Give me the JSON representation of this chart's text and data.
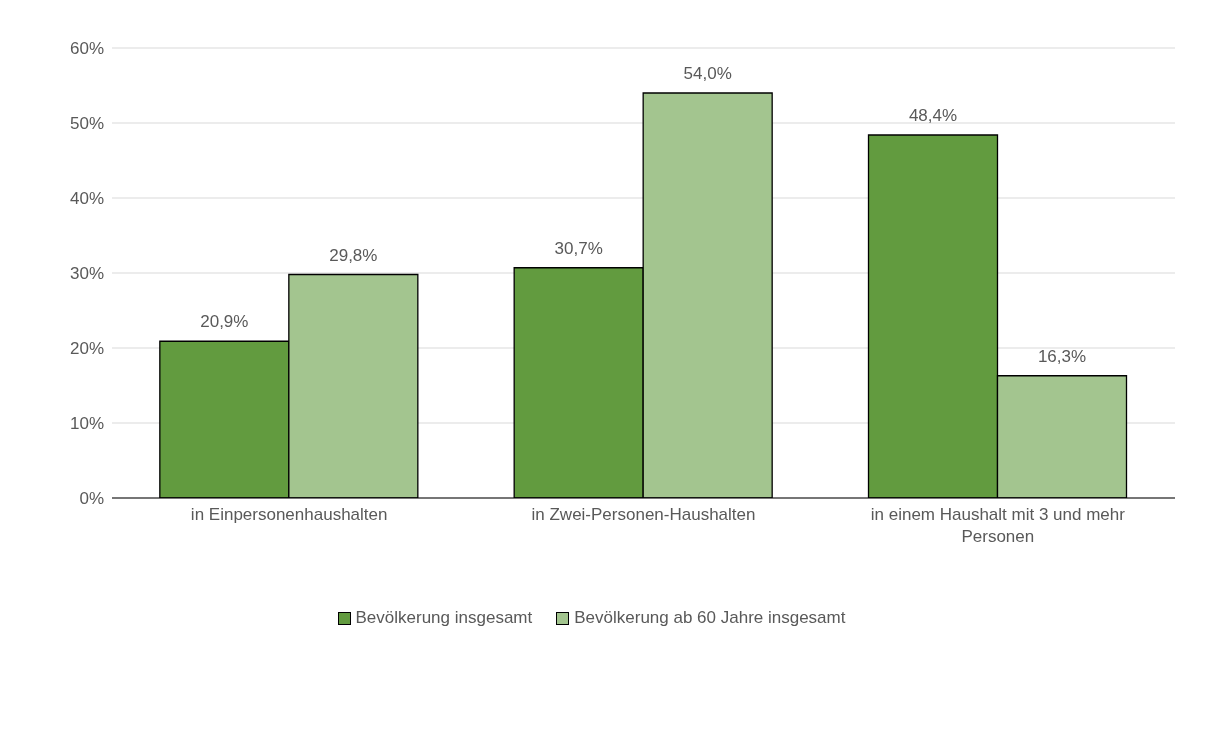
{
  "chart_data": {
    "type": "bar",
    "categories": [
      "in Einpersonenhaushalten",
      "in Zwei-Personen-Haushalten",
      "in einem Haushalt mit 3 und mehr Personen"
    ],
    "series": [
      {
        "name": "Bevölkerung insgesamt",
        "color": "#629b3f",
        "values": [
          20.9,
          30.7,
          48.4
        ],
        "value_labels": [
          "20,9%",
          "30,7%",
          "48,4%"
        ]
      },
      {
        "name": "Bevölkerung ab 60 Jahre insgesamt",
        "color": "#a3c58f",
        "values": [
          29.8,
          54.0,
          16.3
        ],
        "value_labels": [
          "29,8%",
          "54,0%",
          "16,3%"
        ]
      }
    ],
    "ylim": [
      0,
      60
    ],
    "yticks": [
      {
        "value": 0,
        "label": "0%"
      },
      {
        "value": 10,
        "label": "10%"
      },
      {
        "value": 20,
        "label": "20%"
      },
      {
        "value": 30,
        "label": "30%"
      },
      {
        "value": 40,
        "label": "40%"
      },
      {
        "value": 50,
        "label": "50%"
      },
      {
        "value": 60,
        "label": "60%"
      }
    ],
    "grid": "y",
    "legend": "bottom"
  }
}
